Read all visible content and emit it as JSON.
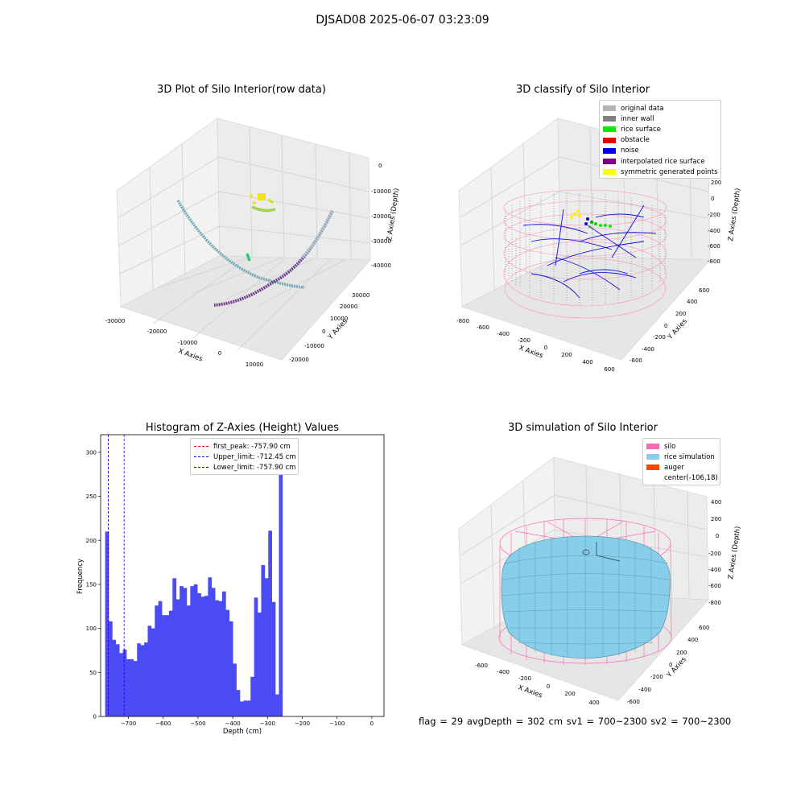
{
  "figure": {
    "suptitle": "DJSAD08 2025-06-07 03:23:09",
    "footer": "flag = 29  avgDepth = 302 cm  sv1 = 700~2300  sv2 = 700~2300"
  },
  "panels": {
    "raw": {
      "title": "3D Plot of Silo Interior(row data)",
      "xlabel": "X Axies",
      "ylabel": "Y Axies",
      "zlabel": "Z Axies (Depth)",
      "xticks": [
        "-30000",
        "-20000",
        "-10000",
        "0",
        "10000"
      ],
      "yticks": [
        "-20000",
        "-10000",
        "0",
        "10000",
        "20000",
        "30000"
      ],
      "zticks": [
        "0",
        "-10000",
        "-20000",
        "-30000",
        "-40000"
      ]
    },
    "classify": {
      "title": "3D classify of Silo Interior",
      "xlabel": "X Axies",
      "ylabel": "Y Axies",
      "zlabel": "Z Axies (Depth)",
      "xticks": [
        "-800",
        "-600",
        "-400",
        "-200",
        "0",
        "200",
        "400",
        "600"
      ],
      "yticks": [
        "-600",
        "-400",
        "-200",
        "0",
        "200",
        "400",
        "600"
      ],
      "zticks": [
        "200",
        "0",
        "-200",
        "-400",
        "-600",
        "-800"
      ],
      "legend": [
        {
          "label": "original data",
          "color": "#b3b3b3"
        },
        {
          "label": "inner wall",
          "color": "#808080"
        },
        {
          "label": "rice surface",
          "color": "#00ee00"
        },
        {
          "label": "obstacle",
          "color": "#ee0000"
        },
        {
          "label": "noise",
          "color": "#0000dd"
        },
        {
          "label": "interpolated rice surface",
          "color": "#800080"
        },
        {
          "label": "symmetric generated points",
          "color": "#ffff00"
        }
      ]
    },
    "histogram": {
      "title": "Histogram of Z-Axies (Height) Values",
      "xlabel": "Depth (cm)",
      "ylabel": "Frequency",
      "legend": [
        {
          "label": "first_peak: -757.90 cm",
          "color": "#ff0000"
        },
        {
          "label": "Upper_limit: -712.45 cm",
          "color": "#0000ff"
        },
        {
          "label": "Lower_limit: -757.90 cm",
          "color": "#0000ff"
        }
      ]
    },
    "simulation": {
      "title": "3D simulation of Silo Interior",
      "xlabel": "X Axies",
      "ylabel": "Y Axies",
      "zlabel": "Z Axies (Depth)",
      "xticks": [
        "-600",
        "-400",
        "-200",
        "0",
        "200",
        "400"
      ],
      "yticks": [
        "-600",
        "-400",
        "-200",
        "0",
        "200",
        "400",
        "600"
      ],
      "zticks": [
        "400",
        "200",
        "0",
        "-200",
        "-400",
        "-600",
        "-800"
      ],
      "legend": [
        {
          "label": "silo",
          "color": "#ff69b4"
        },
        {
          "label": "rice simulation",
          "color": "#87ceeb"
        },
        {
          "label": "auger",
          "color": "#ff4500"
        },
        {
          "label": "center(-106,18)",
          "color": ""
        }
      ]
    }
  },
  "chart_data": {
    "type": "bar",
    "title": "Histogram of Z-Axies (Height) Values",
    "xlabel": "Depth (cm)",
    "ylabel": "Frequency",
    "bin_start": -767,
    "bin_width": 10.2,
    "values": [
      210,
      108,
      87,
      82,
      72,
      76,
      65,
      65,
      63,
      83,
      81,
      84,
      103,
      100,
      126,
      131,
      115,
      115,
      120,
      157,
      133,
      148,
      146,
      126,
      148,
      150,
      140,
      136,
      137,
      158,
      146,
      132,
      131,
      142,
      121,
      108,
      60,
      30,
      17,
      18,
      18,
      45,
      135,
      118,
      172,
      157,
      211,
      130,
      25,
      304
    ],
    "xlim": [
      -780,
      35
    ],
    "ylim": [
      0,
      320
    ],
    "xticks": [
      -700,
      -600,
      -500,
      -400,
      -300,
      -200,
      -100,
      0
    ],
    "xtick_labels": [
      "−700",
      "−600",
      "−500",
      "−400",
      "−300",
      "−200",
      "−100",
      "0"
    ],
    "yticks": [
      0,
      50,
      100,
      150,
      200,
      250,
      300
    ],
    "bar_color": "#4b4bf5",
    "vlines": [
      {
        "x": -757.9,
        "color": "#ff0000"
      },
      {
        "x": -712.45,
        "color": "#0000ff"
      },
      {
        "x": -757.9,
        "color": "#0000ff"
      }
    ]
  }
}
